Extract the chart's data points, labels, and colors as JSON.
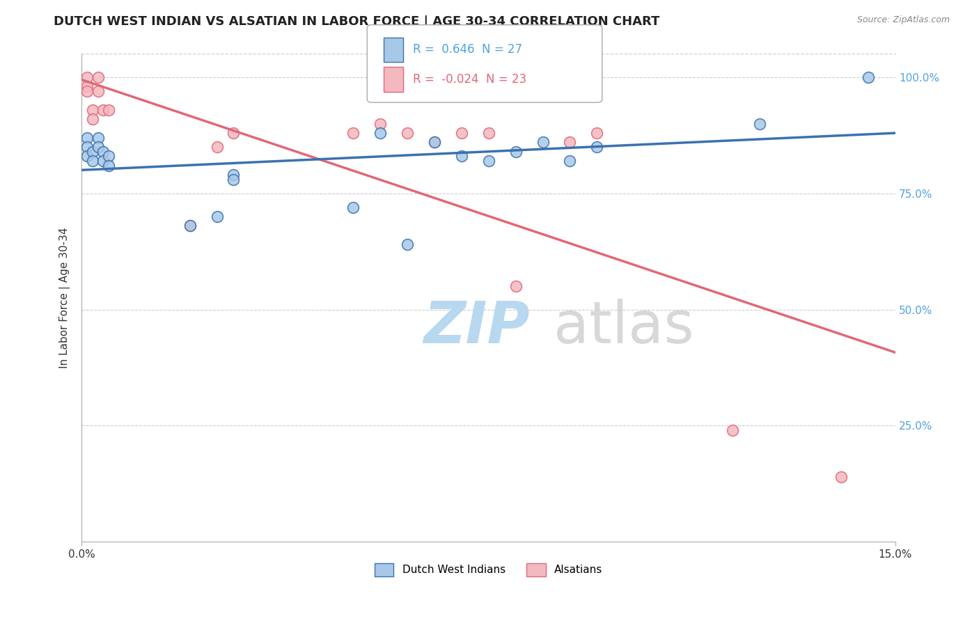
{
  "title": "DUTCH WEST INDIAN VS ALSATIAN IN LABOR FORCE | AGE 30-34 CORRELATION CHART",
  "source": "Source: ZipAtlas.com",
  "ylabel": "In Labor Force | Age 30-34",
  "xlim": [
    0.0,
    0.15
  ],
  "ylim": [
    0.0,
    1.05
  ],
  "blue_R": 0.646,
  "blue_N": 27,
  "pink_R": -0.024,
  "pink_N": 23,
  "blue_color": "#a8c8e8",
  "pink_color": "#f4b8c0",
  "blue_line_color": "#3a72b0",
  "pink_line_color": "#e06878",
  "legend_label_blue": "Dutch West Indians",
  "legend_label_pink": "Alsatians",
  "blue_x": [
    0.001,
    0.001,
    0.001,
    0.002,
    0.002,
    0.003,
    0.003,
    0.004,
    0.004,
    0.005,
    0.005,
    0.02,
    0.025,
    0.028,
    0.028,
    0.05,
    0.055,
    0.06,
    0.065,
    0.07,
    0.075,
    0.08,
    0.085,
    0.09,
    0.095,
    0.125,
    0.145
  ],
  "blue_y": [
    0.87,
    0.85,
    0.83,
    0.84,
    0.82,
    0.87,
    0.85,
    0.84,
    0.82,
    0.83,
    0.81,
    0.68,
    0.7,
    0.79,
    0.78,
    0.72,
    0.88,
    0.64,
    0.86,
    0.83,
    0.82,
    0.84,
    0.86,
    0.82,
    0.85,
    0.9,
    1.0
  ],
  "pink_x": [
    0.001,
    0.001,
    0.001,
    0.002,
    0.002,
    0.003,
    0.003,
    0.004,
    0.005,
    0.02,
    0.025,
    0.028,
    0.05,
    0.055,
    0.06,
    0.065,
    0.07,
    0.075,
    0.08,
    0.09,
    0.095,
    0.12,
    0.14
  ],
  "pink_y": [
    1.0,
    0.98,
    0.97,
    0.93,
    0.91,
    1.0,
    0.97,
    0.93,
    0.93,
    0.68,
    0.85,
    0.88,
    0.88,
    0.9,
    0.88,
    0.86,
    0.88,
    0.88,
    0.55,
    0.86,
    0.88,
    0.24,
    0.14
  ],
  "background_color": "#ffffff",
  "grid_color": "#cccccc",
  "title_fontsize": 13,
  "axis_label_fontsize": 11,
  "tick_fontsize": 11,
  "legend_fontsize": 11,
  "marker_size": 130,
  "line_width": 2.5,
  "watermark_zip_color": "#b8d8f0",
  "watermark_atlas_color": "#c8c8c8",
  "watermark_fontsize": 60
}
